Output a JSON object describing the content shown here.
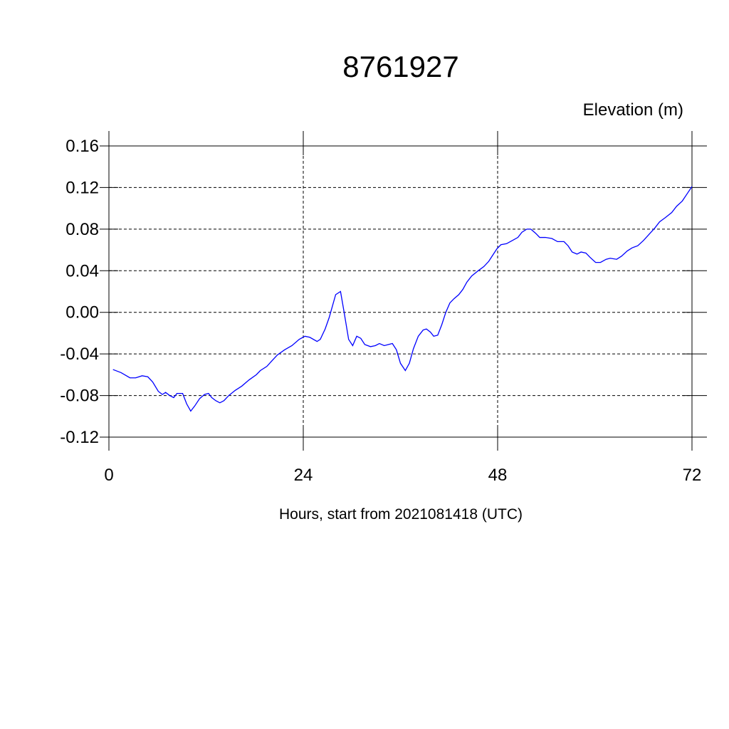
{
  "chart_data": {
    "type": "line",
    "title": "8761927",
    "ylabel": "Elevation (m)",
    "xlabel": "Hours, start from 2021081418 (UTC)",
    "xlim": [
      0,
      72
    ],
    "xticks": [
      0,
      24,
      48,
      72
    ],
    "ylim": [
      -0.12,
      0.16
    ],
    "yticks": [
      0.16,
      0.12,
      0.08,
      0.04,
      {
        "value": 0,
        "label": "0.00"
      },
      -0.04,
      -0.08,
      -0.12
    ],
    "grid": true,
    "series": [
      {
        "color": "#0000ff",
        "x": [
          0.5,
          1.5,
          2.6,
          3.3,
          4.1,
          4.8,
          5.4,
          6.1,
          6.6,
          7.0,
          7.5,
          8.0,
          8.4,
          9.1,
          9.6,
          10.1,
          10.6,
          11.2,
          11.8,
          12.3,
          12.7,
          13.2,
          13.7,
          14.2,
          14.8,
          15.6,
          16.4,
          17.3,
          18.2,
          18.7,
          19.5,
          20.2,
          20.8,
          21.7,
          22.6,
          23.5,
          24.2,
          24.8,
          25.7,
          26.1,
          26.7,
          27.2,
          27.6,
          28.0,
          28.6,
          29.0,
          29.6,
          30.1,
          30.6,
          31.1,
          31.6,
          32.3,
          32.9,
          33.4,
          34.0,
          34.5,
          35.0,
          35.5,
          36.0,
          36.6,
          37.1,
          37.6,
          38.2,
          38.8,
          39.2,
          39.7,
          40.1,
          40.6,
          41.1,
          41.6,
          42.1,
          42.6,
          43.2,
          43.7,
          44.2,
          44.8,
          45.6,
          46.3,
          46.9,
          47.4,
          47.9,
          48.4,
          49.1,
          49.8,
          50.5,
          51.0,
          51.6,
          52.1,
          52.7,
          53.2,
          53.9,
          54.7,
          55.4,
          56.2,
          56.7,
          57.2,
          57.8,
          58.3,
          58.9,
          59.4,
          60.1,
          60.7,
          61.4,
          61.9,
          62.7,
          63.3,
          64.0,
          64.6,
          65.3,
          66.0,
          66.7,
          67.4,
          68.0,
          68.7,
          69.5,
          70.1,
          70.8,
          71.4,
          72
        ],
        "values": [
          -0.055,
          -0.058,
          -0.063,
          -0.063,
          -0.061,
          -0.062,
          -0.067,
          -0.076,
          -0.079,
          -0.077,
          -0.08,
          -0.082,
          -0.078,
          -0.078,
          -0.088,
          -0.095,
          -0.09,
          -0.083,
          -0.079,
          -0.078,
          -0.082,
          -0.085,
          -0.087,
          -0.085,
          -0.08,
          -0.075,
          -0.071,
          -0.065,
          -0.06,
          -0.056,
          -0.052,
          -0.046,
          -0.041,
          -0.036,
          -0.032,
          -0.026,
          -0.023,
          -0.024,
          -0.028,
          -0.026,
          -0.016,
          -0.005,
          0.006,
          0.017,
          0.02,
          0.002,
          -0.026,
          -0.032,
          -0.023,
          -0.025,
          -0.031,
          -0.033,
          -0.032,
          -0.03,
          -0.032,
          -0.031,
          -0.03,
          -0.036,
          -0.049,
          -0.056,
          -0.049,
          -0.035,
          -0.023,
          -0.017,
          -0.016,
          -0.019,
          -0.023,
          -0.022,
          -0.012,
          0.0,
          0.009,
          0.013,
          0.017,
          0.022,
          0.029,
          0.035,
          0.04,
          0.044,
          0.049,
          0.055,
          0.061,
          0.065,
          0.066,
          0.069,
          0.072,
          0.077,
          0.08,
          0.08,
          0.076,
          0.072,
          0.072,
          0.071,
          0.068,
          0.068,
          0.064,
          0.058,
          0.056,
          0.058,
          0.057,
          0.053,
          0.048,
          0.048,
          0.051,
          0.052,
          0.051,
          0.054,
          0.059,
          0.062,
          0.064,
          0.069,
          0.075,
          0.081,
          0.087,
          0.091,
          0.096,
          0.102,
          0.107,
          0.114,
          0.121
        ]
      }
    ]
  }
}
